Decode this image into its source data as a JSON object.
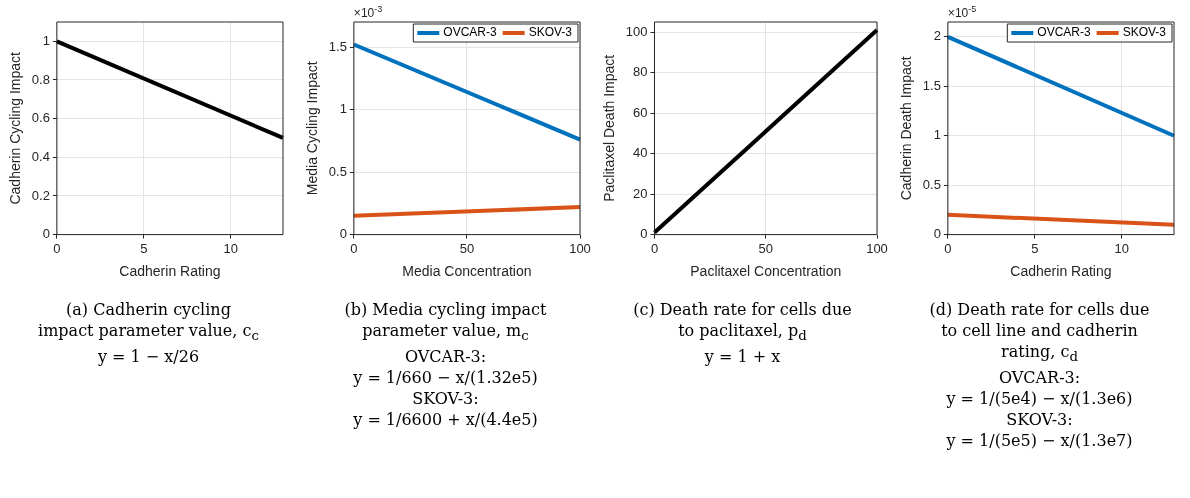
{
  "chart_data": [
    {
      "type": "line",
      "title": "(a) Cadherin cycling\nimpact parameter value, c$_{c}$\ny = 1 − x/26",
      "xlabel": "Cadherin Rating",
      "ylabel": "Cadherin Cycling Impact",
      "x": [
        0,
        13
      ],
      "xlim": [
        0,
        13
      ],
      "xticks": [
        0,
        5,
        10
      ],
      "ylim": [
        0,
        1.1
      ],
      "yticks": [
        0,
        0.2,
        0.4,
        0.6,
        0.8,
        1
      ],
      "grid": true,
      "legend": false,
      "line_style": "solid",
      "marker": "none",
      "series": [
        {
          "color": "#000000",
          "values": [
            1,
            0.5
          ]
        }
      ]
    },
    {
      "type": "line",
      "title": "(b) Media cycling impact\nparameter value, m$_{c}$\nOVCAR-3:\ny = 1/660 − x/(1.32e5)\nSKOV-3:\ny = 1/6600 + x/(4.4e5)",
      "xlabel": "Media Concentration",
      "ylabel": "Media Cycling Impact",
      "x": [
        0,
        100
      ],
      "xlim": [
        0,
        100
      ],
      "xticks": [
        0,
        50,
        100
      ],
      "ylim": [
        0,
        1.7
      ],
      "yticks": [
        0,
        0.5,
        1,
        1.5
      ],
      "grid": true,
      "legend": "top right",
      "line_style": "solid",
      "marker": "none",
      "annotations": [
        "×10$^{-3}$"
      ],
      "series": [
        {
          "name": "OVCAR-3",
          "color": "#0072bd",
          "values": [
            1.52,
            0.76
          ]
        },
        {
          "name": "SKOV-3",
          "color": "#d95319",
          "values": [
            0.15,
            0.22
          ]
        }
      ]
    },
    {
      "type": "line",
      "title": "(c) Death rate for cells due\nto paclitaxel, p$_{d}$\ny = 1 + x",
      "xlabel": "Paclitaxel Concentration",
      "ylabel": "Paclitaxel Death Impact",
      "x": [
        0,
        100
      ],
      "xlim": [
        0,
        100
      ],
      "xticks": [
        0,
        50,
        100
      ],
      "ylim": [
        0,
        105
      ],
      "yticks": [
        0,
        20,
        40,
        60,
        80,
        100
      ],
      "grid": true,
      "legend": false,
      "line_style": "solid",
      "marker": "none",
      "series": [
        {
          "color": "#000000",
          "values": [
            1,
            101
          ]
        }
      ]
    },
    {
      "type": "line",
      "title": "(d) Death rate for cells due\nto cell line and cadherin\nrating, c$_{d}$\nOVCAR-3:\ny = 1/(5e4) − x/(1.3e6)\nSKOV-3:\ny = 1/(5e5) − x/(1.3e7)",
      "xlabel": "Cadherin Rating",
      "ylabel": "Cadherin Death Impact",
      "x": [
        0,
        13
      ],
      "xlim": [
        0,
        13
      ],
      "xticks": [
        0,
        5,
        10
      ],
      "ylim": [
        0,
        2.15
      ],
      "yticks": [
        0,
        0.5,
        1,
        1.5,
        2
      ],
      "grid": true,
      "legend": "top right",
      "line_style": "solid",
      "marker": "none",
      "annotations": [
        "×10$^{-5}$"
      ],
      "series": [
        {
          "name": "OVCAR-3",
          "color": "#0072bd",
          "values": [
            2,
            1
          ]
        },
        {
          "name": "SKOV-3",
          "color": "#d95319",
          "values": [
            0.2,
            0.1
          ]
        }
      ]
    }
  ]
}
